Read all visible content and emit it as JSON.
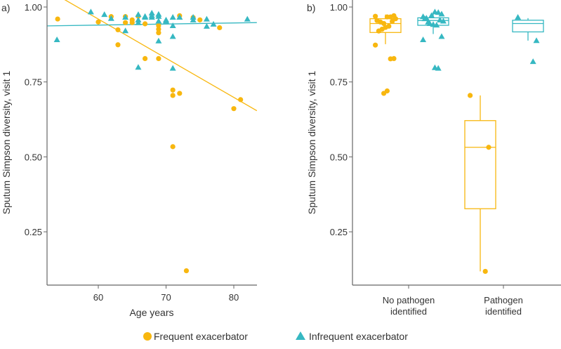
{
  "colors": {
    "frequent": "#F8B70F",
    "infrequent": "#36B8C2",
    "axis": "#666666"
  },
  "legend": {
    "frequent": "Frequent exacerbator",
    "infrequent": "Infrequent exacerbator"
  },
  "chart_data": [
    {
      "type": "scatter",
      "panel_label": "a)",
      "xlabel": "Age years",
      "ylabel": "Sputum Simpson diversity, visit 1",
      "xlim": [
        52.4,
        83.4
      ],
      "ylim": [
        0.07,
        1.02
      ],
      "xticks": [
        "60",
        "70",
        "80"
      ],
      "yticks": [
        "1.00",
        "0.75",
        "0.50",
        "0.25"
      ],
      "series": [
        {
          "name": "Frequent exacerbator",
          "marker": "circle",
          "points": [
            [
              54,
              0.96
            ],
            [
              60,
              0.95
            ],
            [
              61.9,
              0.968
            ],
            [
              62.9,
              0.924
            ],
            [
              62.9,
              0.874
            ],
            [
              64,
              0.968
            ],
            [
              64,
              0.948
            ],
            [
              65,
              0.957
            ],
            [
              65,
              0.948
            ],
            [
              65.9,
              0.969
            ],
            [
              66.9,
              0.944
            ],
            [
              66.9,
              0.828
            ],
            [
              68.9,
              0.938
            ],
            [
              68.9,
              0.926
            ],
            [
              68.9,
              0.914
            ],
            [
              68.9,
              0.828
            ],
            [
              71,
              0.723
            ],
            [
              71,
              0.705
            ],
            [
              71,
              0.534
            ],
            [
              72,
              0.712
            ],
            [
              72,
              0.971
            ],
            [
              73,
              0.12
            ],
            [
              74,
              0.965
            ],
            [
              75,
              0.957
            ],
            [
              77.9,
              0.931
            ],
            [
              80,
              0.661
            ],
            [
              81,
              0.691
            ]
          ],
          "fit": {
            "x": [
              52.4,
              83.4
            ],
            "y": [
              1.059,
              0.654
            ]
          }
        },
        {
          "name": "Infrequent exacerbator",
          "marker": "triangle",
          "points": [
            [
              53.9,
              0.891
            ],
            [
              58.9,
              0.984
            ],
            [
              60.9,
              0.975
            ],
            [
              61.9,
              0.962
            ],
            [
              64,
              0.966
            ],
            [
              64,
              0.921
            ],
            [
              65.9,
              0.975
            ],
            [
              65.9,
              0.957
            ],
            [
              65.9,
              0.948
            ],
            [
              65.9,
              0.799
            ],
            [
              66.9,
              0.969
            ],
            [
              66.9,
              0.966
            ],
            [
              67.9,
              0.98
            ],
            [
              67.9,
              0.972
            ],
            [
              67.9,
              0.966
            ],
            [
              68.9,
              0.976
            ],
            [
              68.9,
              0.969
            ],
            [
              68.9,
              0.953
            ],
            [
              68.9,
              0.887
            ],
            [
              70,
              0.957
            ],
            [
              70,
              0.953
            ],
            [
              71,
              0.966
            ],
            [
              71,
              0.938
            ],
            [
              71,
              0.902
            ],
            [
              71,
              0.796
            ],
            [
              72,
              0.966
            ],
            [
              74,
              0.966
            ],
            [
              74,
              0.957
            ],
            [
              76,
              0.96
            ],
            [
              76,
              0.936
            ],
            [
              77,
              0.943
            ],
            [
              82,
              0.96
            ]
          ],
          "fit": {
            "x": [
              52.4,
              83.4
            ],
            "y": [
              0.937,
              0.948
            ]
          }
        }
      ]
    },
    {
      "type": "box",
      "panel_label": "b)",
      "ylabel": "Sputum Simpson diversity, visit 1",
      "ylim": [
        0.07,
        1.02
      ],
      "yticks": [
        "1.00",
        "0.75",
        "0.50",
        "0.25"
      ],
      "categories": [
        [
          "No pathogen",
          "identified"
        ],
        [
          "Pathogen",
          "identified"
        ]
      ],
      "series": [
        {
          "name": "Frequent exacerbator",
          "marker": "circle",
          "boxes": [
            {
              "whisker_low": 0.876,
              "q1": 0.915,
              "median": 0.945,
              "q3": 0.961,
              "whisker_high": 0.975
            },
            {
              "whisker_low": 0.118,
              "q1": 0.327,
              "median": 0.532,
              "q3": 0.621,
              "whisker_high": 0.705
            }
          ],
          "points": [
            [
              0.969,
              0.971,
              0.967,
              0.967,
              0.945,
              0.95,
              0.955,
              0.961,
              0.952,
              0.936,
              0.932,
              0.926,
              0.92,
              0.873,
              0.828,
              0.827,
              0.72,
              0.712
            ],
            [
              0.705,
              0.532,
              0.118
            ]
          ]
        },
        {
          "name": "Infrequent exacerbator",
          "marker": "triangle",
          "boxes": [
            {
              "whisker_low": 0.91,
              "q1": 0.939,
              "median": 0.955,
              "q3": 0.964,
              "whisker_high": 0.984
            },
            {
              "whisker_low": 0.888,
              "q1": 0.917,
              "median": 0.945,
              "q3": 0.956,
              "whisker_high": 0.963
            }
          ],
          "points": [
            [
              0.968,
              0.977,
              0.982,
              0.984,
              0.972,
              0.95,
              0.961,
              0.953,
              0.957,
              0.94,
              0.942,
              0.945,
              0.963,
              0.891,
              0.902,
              0.796,
              0.798
            ],
            [
              0.966,
              0.888,
              0.818
            ]
          ]
        }
      ]
    }
  ]
}
